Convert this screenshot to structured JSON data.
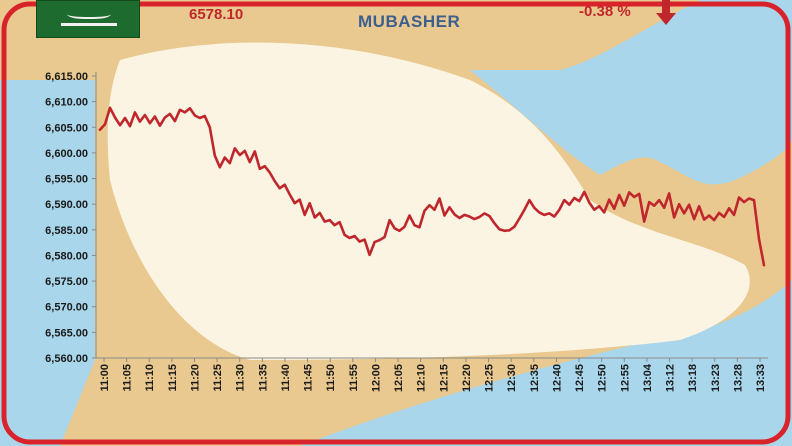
{
  "header": {
    "index_value": "6578.10",
    "change_percent": "-0.38 %",
    "brand": "MUBASHER"
  },
  "colors": {
    "line": "#c0272d",
    "frame": "#d9232a",
    "water": "#a9d6ea",
    "land": "#e9c98f",
    "peninsula": "#fbf4e2"
  },
  "icons": [
    "saudi-flag-icon",
    "down-arrow-icon"
  ],
  "chart_data": {
    "type": "line",
    "title": "",
    "xlabel": "",
    "ylabel": "",
    "ylim": [
      6560,
      6615
    ],
    "yticks": [
      "6,560.00",
      "6,565.00",
      "6,570.00",
      "6,575.00",
      "6,580.00",
      "6,585.00",
      "6,590.00",
      "6,595.00",
      "6,600.00",
      "6,605.00",
      "6,610.00",
      "6,615.00"
    ],
    "xticks": [
      "11:00",
      "11:05",
      "11:10",
      "11:15",
      "11:20",
      "11:25",
      "11:30",
      "11:35",
      "11:40",
      "11:45",
      "11:50",
      "11:55",
      "12:00",
      "12:05",
      "12:10",
      "12:15",
      "12:20",
      "12:25",
      "12:30",
      "12:35",
      "12:40",
      "12:45",
      "12:50",
      "12:55",
      "13:04",
      "13:12",
      "13:18",
      "13:23",
      "13:28",
      "13:33"
    ],
    "grid": false,
    "series": [
      {
        "values": [
          6604.5,
          6605.6,
          6608.8,
          6606.9,
          6605.4,
          6606.8,
          6605.2,
          6607.9,
          6606.1,
          6607.4,
          6605.8,
          6607.1,
          6605.3,
          6606.9,
          6607.6,
          6606.2,
          6608.4,
          6607.9,
          6608.7,
          6607.3,
          6606.8,
          6607.2,
          6605.0,
          6599.5,
          6597.2,
          6599.1,
          6598.0,
          6600.9,
          6599.6,
          6600.4,
          6598.2,
          6600.3,
          6596.9,
          6597.4,
          6596.2,
          6594.5,
          6593.1,
          6593.8,
          6591.9,
          6590.2,
          6590.9,
          6587.9,
          6590.2,
          6587.4,
          6588.3,
          6586.6,
          6586.9,
          6585.9,
          6586.5,
          6584.0,
          6583.4,
          6583.8,
          6582.7,
          6583.1,
          6580.1,
          6582.6,
          6583.0,
          6583.6,
          6586.9,
          6585.3,
          6584.8,
          6585.6,
          6587.8,
          6585.9,
          6585.5,
          6588.7,
          6589.8,
          6588.9,
          6591.1,
          6587.8,
          6589.4,
          6588.0,
          6587.3,
          6587.9,
          6587.6,
          6587.1,
          6587.5,
          6588.2,
          6587.7,
          6586.3,
          6585.1,
          6584.8,
          6584.9,
          6585.6,
          6587.2,
          6588.9,
          6590.8,
          6589.3,
          6588.4,
          6587.9,
          6588.2,
          6587.6,
          6588.9,
          6590.8,
          6589.9,
          6591.2,
          6590.6,
          6592.4,
          6590.3,
          6588.9,
          6589.6,
          6588.4,
          6590.9,
          6589.1,
          6591.8,
          6589.7,
          6592.3,
          6591.4,
          6592.0,
          6586.6,
          6590.4,
          6589.7,
          6590.8,
          6589.3,
          6592.1,
          6587.4,
          6590.0,
          6588.2,
          6589.9,
          6587.1,
          6589.6,
          6587.0,
          6587.8,
          6586.9,
          6588.3,
          6587.5,
          6589.2,
          6587.9,
          6591.3,
          6590.4,
          6591.1,
          6590.8,
          6583.2,
          6578.1
        ]
      }
    ]
  }
}
